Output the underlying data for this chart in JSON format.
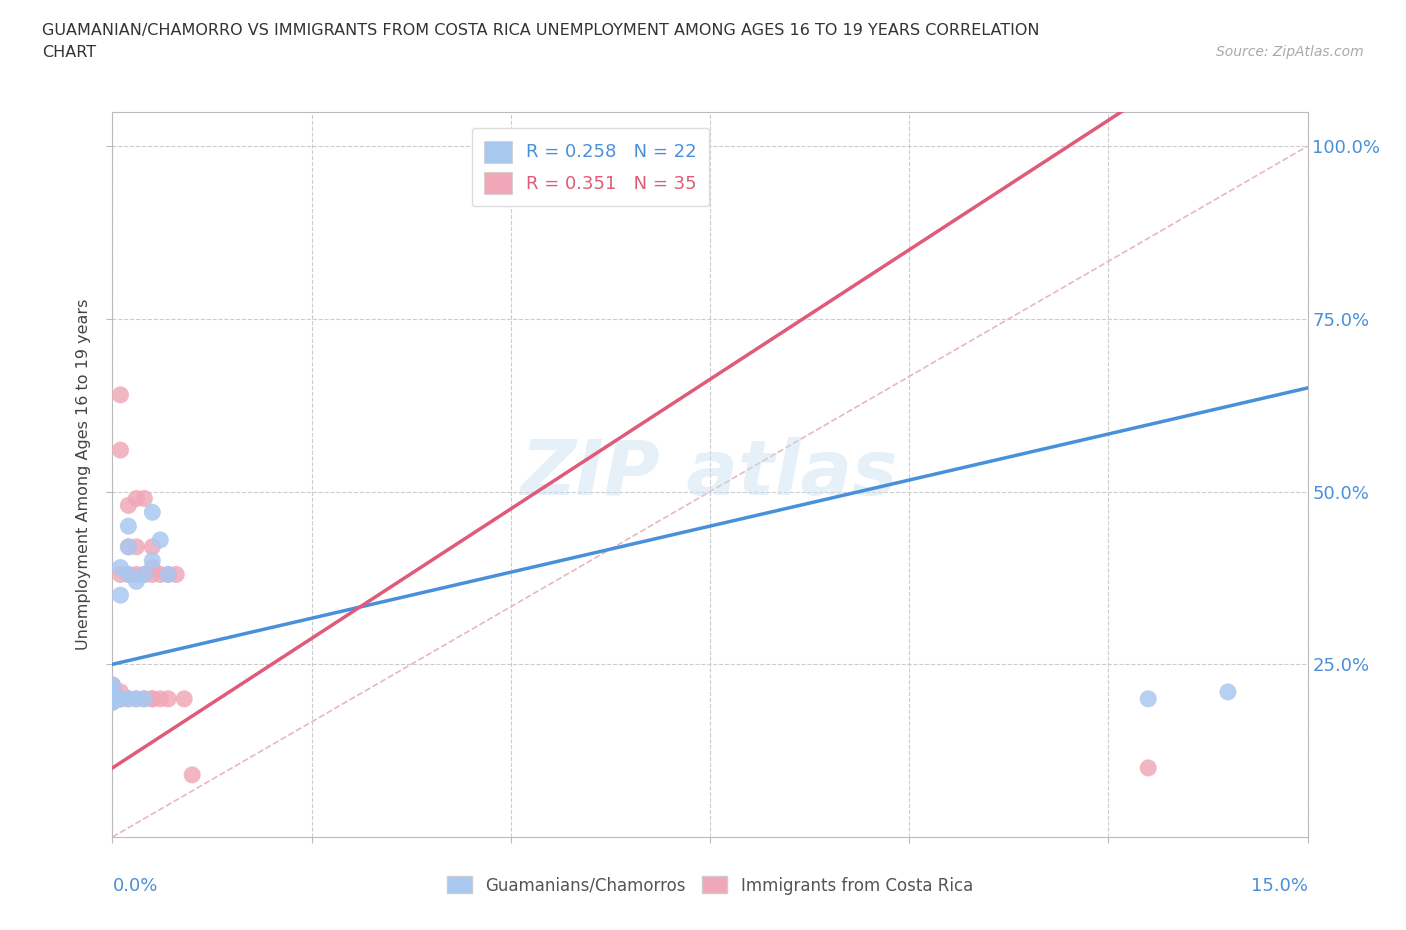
{
  "title_line1": "GUAMANIAN/CHAMORRO VS IMMIGRANTS FROM COSTA RICA UNEMPLOYMENT AMONG AGES 16 TO 19 YEARS CORRELATION",
  "title_line2": "CHART",
  "source": "Source: ZipAtlas.com",
  "ylabel": "Unemployment Among Ages 16 to 19 years",
  "y_tick_vals": [
    0.25,
    0.5,
    0.75,
    1.0
  ],
  "y_tick_labels": [
    "25.0%",
    "50.0%",
    "75.0%",
    "100.0%"
  ],
  "watermark_text": "ZIPatlas",
  "blue_scatter_color": "#a8c8f0",
  "pink_scatter_color": "#f0a8b8",
  "blue_line_color": "#4a90d9",
  "pink_line_color": "#e05a7a",
  "diag_line_color": "#e8b8c0",
  "legend_blue_text": "R = 0.258   N = 22",
  "legend_pink_text": "R = 0.351   N = 35",
  "blue_R": 0.258,
  "blue_N": 22,
  "pink_R": 0.351,
  "pink_N": 35,
  "xlim": [
    0.0,
    0.15
  ],
  "ylim": [
    0.0,
    1.05
  ],
  "guamanian_x": [
    0.0,
    0.0,
    0.0,
    0.0,
    0.0,
    0.001,
    0.001,
    0.001,
    0.002,
    0.002,
    0.002,
    0.002,
    0.003,
    0.003,
    0.004,
    0.004,
    0.005,
    0.005,
    0.006,
    0.007,
    0.13,
    0.14
  ],
  "guamanian_y": [
    0.195,
    0.2,
    0.205,
    0.21,
    0.22,
    0.2,
    0.35,
    0.39,
    0.2,
    0.38,
    0.42,
    0.45,
    0.2,
    0.37,
    0.2,
    0.38,
    0.4,
    0.47,
    0.43,
    0.38,
    0.2,
    0.21
  ],
  "costarica_x": [
    0.0,
    0.0,
    0.0,
    0.0,
    0.0,
    0.001,
    0.001,
    0.001,
    0.001,
    0.001,
    0.001,
    0.002,
    0.002,
    0.002,
    0.002,
    0.003,
    0.003,
    0.003,
    0.003,
    0.004,
    0.004,
    0.004,
    0.005,
    0.005,
    0.005,
    0.005,
    0.005,
    0.006,
    0.006,
    0.007,
    0.007,
    0.008,
    0.009,
    0.01,
    0.13
  ],
  "costarica_y": [
    0.195,
    0.2,
    0.205,
    0.215,
    0.22,
    0.2,
    0.2,
    0.21,
    0.38,
    0.56,
    0.64,
    0.2,
    0.38,
    0.42,
    0.48,
    0.2,
    0.38,
    0.42,
    0.49,
    0.2,
    0.38,
    0.49,
    0.2,
    0.2,
    0.38,
    0.39,
    0.42,
    0.2,
    0.38,
    0.2,
    0.38,
    0.38,
    0.2,
    0.09,
    0.1
  ]
}
